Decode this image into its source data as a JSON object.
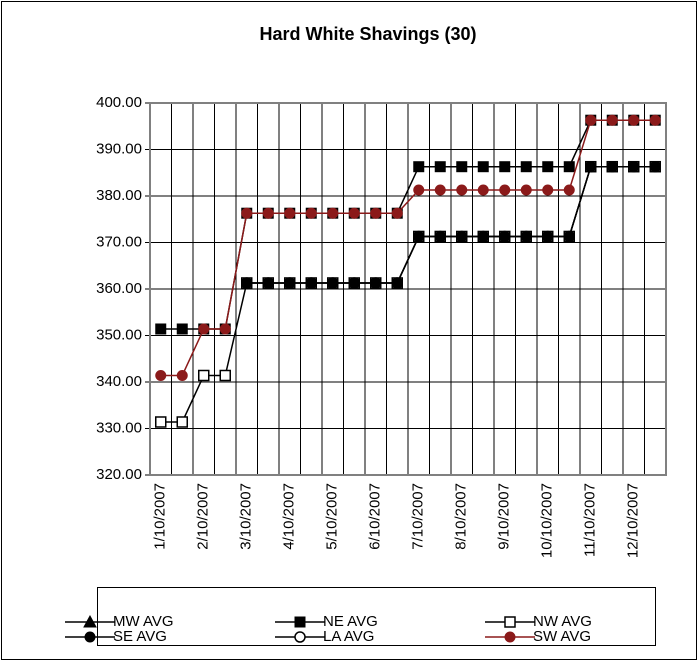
{
  "chart_data": {
    "type": "line",
    "title": "Hard White Shavings (30)",
    "categories": [
      "1/10/2007",
      null,
      "2/10/2007",
      null,
      "3/10/2007",
      null,
      "4/10/2007",
      null,
      "5/10/2007",
      null,
      "6/10/2007",
      null,
      "7/10/2007",
      null,
      "8/10/2007",
      null,
      "9/10/2007",
      null,
      "10/10/2007",
      null,
      "11/10/2007",
      null,
      "12/10/2007",
      null
    ],
    "series": [
      {
        "name": "MW AVG",
        "color": "#000000",
        "marker": "triangle",
        "values": [
          null,
          null,
          null,
          null,
          null,
          null,
          null,
          null,
          null,
          null,
          null,
          null,
          null,
          null,
          null,
          null,
          null,
          null,
          null,
          null,
          null,
          null,
          null,
          null
        ]
      },
      {
        "name": "NE AVG",
        "color": "#000000",
        "marker": "square",
        "values": [
          351.4,
          351.4,
          351.4,
          351.4,
          376.3,
          376.3,
          376.3,
          376.3,
          376.3,
          376.3,
          376.3,
          376.3,
          386.3,
          386.3,
          386.3,
          386.3,
          386.3,
          386.3,
          386.3,
          386.3,
          396.3,
          396.3,
          396.3,
          396.3
        ]
      },
      {
        "name": "NW AVG",
        "color": "#000000",
        "marker": "square-open",
        "values": [
          331.4,
          331.4,
          341.4,
          341.4,
          361.3,
          361.3,
          361.3,
          361.3,
          361.3,
          361.3,
          361.3,
          361.3,
          371.3,
          371.3,
          371.3,
          371.3,
          371.3,
          371.3,
          371.3,
          371.3,
          386.3,
          386.3,
          386.3,
          386.3
        ]
      },
      {
        "name": "SE AVG",
        "color": "#000000",
        "marker": "circle",
        "values": [
          null,
          null,
          null,
          null,
          361.3,
          361.3,
          361.3,
          361.3,
          361.3,
          361.3,
          361.3,
          361.3,
          371.3,
          371.3,
          371.3,
          371.3,
          371.3,
          371.3,
          371.3,
          371.3,
          386.3,
          386.3,
          386.3,
          386.3
        ]
      },
      {
        "name": "LA AVG",
        "color": "#000000",
        "marker": "circle-open",
        "values": [
          null,
          null,
          null,
          null,
          361.3,
          361.3,
          361.3,
          361.3,
          361.3,
          361.3,
          361.3,
          361.3,
          371.3,
          371.3,
          371.3,
          371.3,
          371.3,
          371.3,
          371.3,
          371.3,
          386.3,
          386.3,
          386.3,
          386.3
        ]
      },
      {
        "name": "SW AVG",
        "color": "#8b1a1a",
        "marker": "circle",
        "values": [
          341.4,
          341.4,
          351.4,
          351.4,
          376.3,
          376.3,
          376.3,
          376.3,
          376.3,
          376.3,
          376.3,
          376.3,
          381.3,
          381.3,
          381.3,
          381.3,
          381.3,
          381.3,
          381.3,
          381.3,
          396.3,
          396.3,
          396.3,
          396.3
        ]
      }
    ],
    "ylim": [
      320,
      400
    ],
    "yticks": [
      {
        "value": 320,
        "label": "320.00"
      },
      {
        "value": 330,
        "label": "330.00"
      },
      {
        "value": 340,
        "label": "340.00"
      },
      {
        "value": 350,
        "label": "350.00"
      },
      {
        "value": 360,
        "label": "360.00"
      },
      {
        "value": 370,
        "label": "370.00"
      },
      {
        "value": 380,
        "label": "380.00"
      },
      {
        "value": 390,
        "label": "390.00"
      },
      {
        "value": 400,
        "label": "400.00"
      }
    ],
    "grid": true,
    "legend": "bottom"
  }
}
